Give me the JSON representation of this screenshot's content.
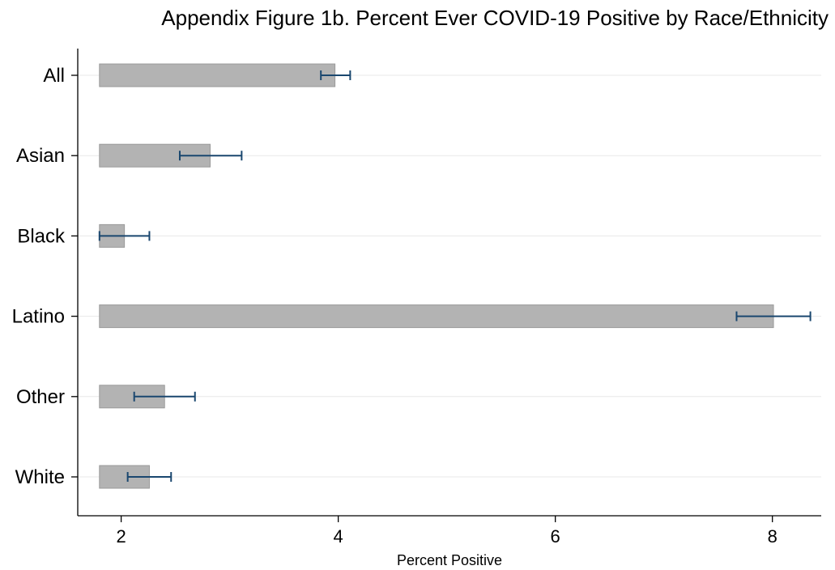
{
  "chart_data": {
    "type": "bar",
    "orientation": "horizontal",
    "title": "Appendix Figure 1b. Percent Ever COVID-19 Positive by Race/Ethnicity",
    "xlabel": "Percent Positive",
    "ylabel": "",
    "categories": [
      "All",
      "Asian",
      "Black",
      "Latino",
      "Other",
      "White"
    ],
    "values": [
      3.97,
      2.82,
      2.03,
      8.01,
      2.4,
      2.26
    ],
    "ci_lower": [
      3.84,
      2.54,
      1.8,
      7.67,
      2.12,
      2.06
    ],
    "ci_upper": [
      4.11,
      3.11,
      2.26,
      8.35,
      2.68,
      2.46
    ],
    "xticks": [
      2,
      4,
      6,
      8
    ],
    "xticklabels": [
      "2",
      "4",
      "6",
      "8"
    ],
    "xlim": [
      1.6,
      8.45
    ],
    "bar_base": 1.8,
    "grid": true,
    "legend": "none",
    "colors": {
      "bar_fill": "#b3b3b3",
      "bar_stroke": "#9a9a9a",
      "error_bar": "#1a476f",
      "grid": "#e8e8e8",
      "axis": "#000000"
    }
  }
}
